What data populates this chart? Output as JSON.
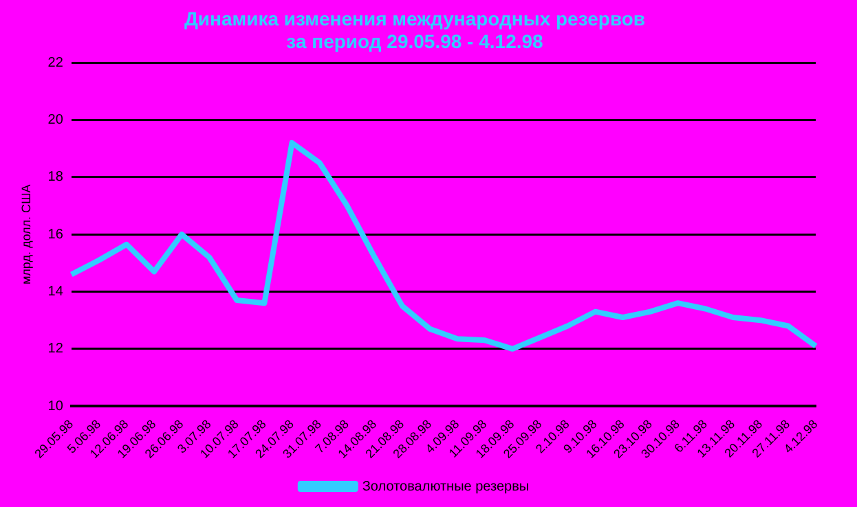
{
  "chart_data": {
    "type": "line",
    "title": [
      "Динамика изменения международных резервов",
      "за период 29.05.98 - 4.12.98"
    ],
    "ylabel": "млрд. долл. США",
    "categories": [
      "29.05.98",
      "5.06.98",
      "12.06.98",
      "19.06.98",
      "26.06.98",
      "3.07.98",
      "10.07.98",
      "17.07.98",
      "24.07.98",
      "31.07.98",
      "7.08.98",
      "14.08.98",
      "21.08.98",
      "28.08.98",
      "4.09.98",
      "11.09.98",
      "18.09.98",
      "25.09.98",
      "2.10.98",
      "9.10.98",
      "16.10.98",
      "23.10.98",
      "30.10.98",
      "6.11.98",
      "13.11.98",
      "20.11.98",
      "27.11.98",
      "4.12.98"
    ],
    "series": [
      {
        "name": "Золотовалютные резервы",
        "color": "#33ccff",
        "values": [
          14.6,
          15.1,
          15.65,
          14.7,
          16.0,
          15.2,
          13.7,
          13.6,
          19.2,
          18.5,
          17.0,
          15.2,
          13.5,
          12.7,
          12.35,
          12.3,
          12.0,
          12.4,
          12.8,
          13.3,
          13.1,
          13.3,
          13.6,
          13.4,
          13.1,
          13.0,
          12.8,
          12.1
        ]
      }
    ],
    "ylim": [
      10,
      22
    ],
    "yticks": [
      10,
      12,
      14,
      16,
      18,
      20,
      22
    ],
    "grid": "y",
    "legend": "bottom",
    "marker": "none",
    "line_style": "solid"
  }
}
